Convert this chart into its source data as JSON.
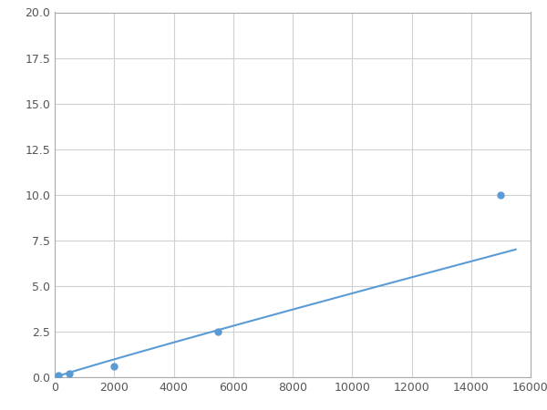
{
  "x": [
    123,
    500,
    2000,
    5500,
    15000
  ],
  "y": [
    0.1,
    0.2,
    0.6,
    2.5,
    10.0
  ],
  "line_color": "#5b9bd5",
  "marker_color": "#5b9bd5",
  "marker_size": 5,
  "xlim": [
    0,
    16000
  ],
  "ylim": [
    0,
    20
  ],
  "xticks": [
    0,
    2000,
    4000,
    6000,
    8000,
    10000,
    12000,
    14000,
    16000
  ],
  "yticks": [
    0.0,
    2.5,
    5.0,
    7.5,
    10.0,
    12.5,
    15.0,
    17.5,
    20.0
  ],
  "grid": true,
  "background_color": "#ffffff",
  "figure_width": 6.0,
  "figure_height": 4.5,
  "dpi": 100
}
